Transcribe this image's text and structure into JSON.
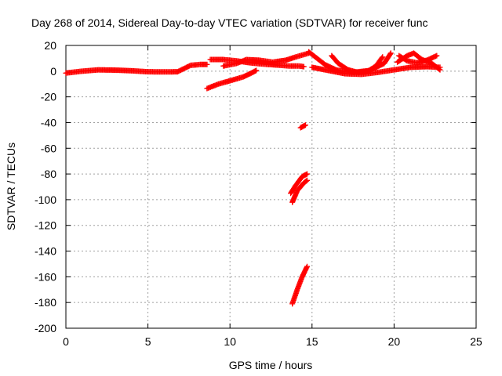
{
  "chart_data": {
    "type": "scatter",
    "title": "Day 268 of 2014, Sidereal Day-to-day VTEC variation (SDTVAR) for receiver func",
    "xlabel": "GPS time / hours",
    "ylabel": "SDTVAR / TECUs",
    "xlim": [
      0,
      25
    ],
    "ylim": [
      -200,
      20
    ],
    "xticks": [
      "0",
      "5",
      "10",
      "15",
      "20",
      "25"
    ],
    "yticks": [
      "20",
      "0",
      "-20",
      "-40",
      "-60",
      "-80",
      "-100",
      "-120",
      "-140",
      "-160",
      "-180",
      "-200"
    ],
    "grid": true,
    "marker": "plus",
    "color": "#ff0000",
    "series": [
      {
        "segments": [
          [
            [
              0.0,
              -1.5
            ],
            [
              1.0,
              0.0
            ],
            [
              2.0,
              1.0
            ],
            [
              3.0,
              0.8
            ],
            [
              4.0,
              0.3
            ],
            [
              5.0,
              -0.5
            ],
            [
              6.0,
              -0.6
            ],
            [
              6.8,
              -0.5
            ],
            [
              7.2,
              2.0
            ],
            [
              7.6,
              4.5
            ],
            [
              8.2,
              5.2
            ],
            [
              8.6,
              5.2
            ]
          ],
          [
            [
              8.6,
              -13.5
            ],
            [
              9.3,
              -10.0
            ],
            [
              10.0,
              -7.5
            ],
            [
              10.8,
              -4.5
            ],
            [
              11.3,
              -1.5
            ],
            [
              11.6,
              0.5
            ]
          ],
          [
            [
              8.8,
              9.0
            ],
            [
              9.6,
              9.0
            ],
            [
              10.4,
              8.0
            ],
            [
              11.2,
              6.5
            ],
            [
              12.0,
              5.5
            ],
            [
              12.8,
              4.8
            ],
            [
              13.6,
              4.0
            ],
            [
              14.2,
              4.0
            ],
            [
              14.5,
              3.5
            ]
          ],
          [
            [
              9.6,
              4.0
            ],
            [
              10.4,
              6.0
            ],
            [
              11.0,
              9.0
            ],
            [
              11.8,
              8.5
            ],
            [
              12.6,
              7.0
            ],
            [
              13.4,
              8.5
            ],
            [
              14.0,
              11.0
            ],
            [
              14.8,
              14.0
            ]
          ],
          [
            [
              14.3,
              -44.0
            ],
            [
              14.6,
              -42.0
            ]
          ],
          [
            [
              13.8,
              -102.0
            ],
            [
              14.1,
              -93.0
            ],
            [
              14.5,
              -87.0
            ],
            [
              14.7,
              -85.0
            ]
          ],
          [
            [
              13.7,
              -95.0
            ],
            [
              14.0,
              -89.0
            ],
            [
              14.4,
              -82.0
            ],
            [
              14.7,
              -80.0
            ]
          ],
          [
            [
              13.8,
              -181.0
            ],
            [
              14.1,
              -170.0
            ],
            [
              14.4,
              -160.0
            ],
            [
              14.7,
              -152.0
            ]
          ],
          [
            [
              14.8,
              15.0
            ],
            [
              15.3,
              10.0
            ],
            [
              15.8,
              5.0
            ],
            [
              16.5,
              0.8
            ],
            [
              17.5,
              -1.0
            ],
            [
              18.5,
              0.5
            ],
            [
              19.4,
              6.0
            ],
            [
              19.8,
              14.0
            ]
          ],
          [
            [
              15.0,
              3.0
            ],
            [
              16.0,
              0.5
            ],
            [
              17.0,
              -2.0
            ],
            [
              18.0,
              -2.5
            ],
            [
              19.0,
              -1.0
            ],
            [
              20.0,
              1.0
            ],
            [
              21.0,
              3.0
            ],
            [
              22.0,
              3.5
            ],
            [
              22.8,
              3.0
            ]
          ],
          [
            [
              16.2,
              12.0
            ],
            [
              16.6,
              6.0
            ],
            [
              17.2,
              1.0
            ],
            [
              17.8,
              -1.0
            ],
            [
              18.4,
              0.0
            ],
            [
              18.9,
              4.0
            ],
            [
              19.3,
              11.0
            ]
          ],
          [
            [
              20.2,
              7.0
            ],
            [
              20.8,
              12.0
            ],
            [
              21.2,
              14.0
            ],
            [
              21.7,
              9.0
            ],
            [
              22.3,
              6.0
            ],
            [
              22.8,
              1.0
            ]
          ],
          [
            [
              20.3,
              12.0
            ],
            [
              20.8,
              8.0
            ],
            [
              21.4,
              6.5
            ],
            [
              22.0,
              8.5
            ],
            [
              22.6,
              12.0
            ]
          ]
        ]
      }
    ]
  }
}
